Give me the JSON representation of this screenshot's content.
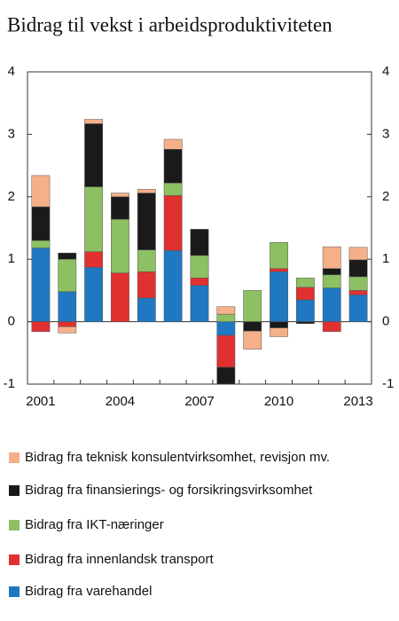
{
  "chart_data": {
    "type": "stacked-bar",
    "title": "Bidrag til vekst i arbeidsproduktiviteten",
    "categories": [
      "2001",
      null,
      null,
      "2004",
      null,
      null,
      "2007",
      null,
      null,
      "2010",
      null,
      null,
      "2013"
    ],
    "series": [
      {
        "name": "Bidrag fra varehandel",
        "color": "#1f78c1",
        "values": [
          1.18,
          0.48,
          0.87,
          0,
          0.38,
          1.14,
          0.58,
          -0.22,
          0,
          0.8,
          0.35,
          0.54,
          0.43
        ]
      },
      {
        "name": "Bidrag fra innenlandsk transport",
        "color": "#e03030",
        "values": [
          -0.16,
          -0.08,
          0.25,
          0.78,
          0.42,
          0.88,
          0.12,
          -0.51,
          0,
          0.05,
          0.2,
          -0.16,
          0.07
        ]
      },
      {
        "name": "Bidrag fra IKT-næringer",
        "color": "#8cc063",
        "values": [
          0.12,
          0.52,
          1.04,
          0.86,
          0.35,
          0.2,
          0.36,
          0.12,
          0.5,
          0.42,
          0.15,
          0.21,
          0.22
        ]
      },
      {
        "name": "Bidrag fra finansierings- og forsikringsvirksomhet",
        "color": "#1a1a1a",
        "values": [
          0.54,
          0.1,
          1.01,
          0.36,
          0.91,
          0.54,
          0.42,
          -0.27,
          -0.15,
          -0.1,
          -0.03,
          0.1,
          0.27
        ]
      },
      {
        "name": "Bidrag fra teknisk konsulentvirksomhet, revisjon mv.",
        "color": "#f5b08a",
        "values": [
          0.5,
          -0.1,
          0.07,
          0.06,
          0.06,
          0.16,
          0,
          0.12,
          -0.29,
          -0.14,
          0,
          0.35,
          0.2
        ]
      }
    ],
    "ylim": [
      -1,
      4
    ],
    "yticks": [
      -1,
      0,
      1,
      2,
      3,
      4
    ],
    "y2lim": [
      -1,
      4
    ],
    "y2ticks": [
      -1,
      0,
      1,
      2,
      3,
      4
    ]
  }
}
